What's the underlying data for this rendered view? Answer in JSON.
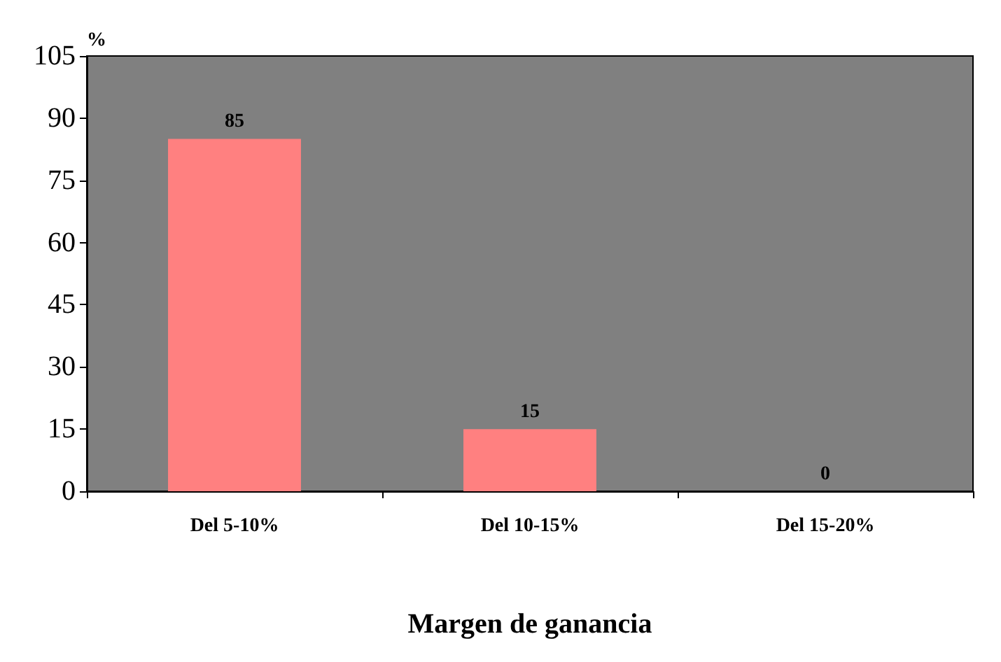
{
  "chart_data": {
    "type": "bar",
    "ylabel": "%",
    "xlabel": "Margen de ganancia",
    "categories": [
      "Del 5-10%",
      "Del 10-15%",
      "Del 15-20%"
    ],
    "values": [
      85,
      15,
      0
    ],
    "color": "#ff8080",
    "ylim": [
      0,
      105
    ],
    "yticks": [
      0,
      15,
      30,
      45,
      60,
      75,
      90,
      105
    ],
    "grid": false,
    "data_labels": true
  }
}
